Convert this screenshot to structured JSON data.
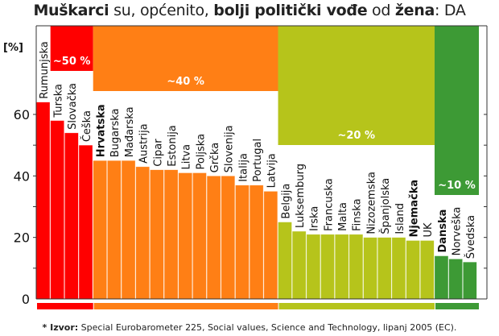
{
  "title_parts": [
    {
      "text": "Muškarci",
      "bold": true
    },
    {
      "text": " su, općenito, ",
      "bold": false
    },
    {
      "text": "bolji politički vođe",
      "bold": true
    },
    {
      "text": " od ",
      "bold": false
    },
    {
      "text": "žena",
      "bold": true
    },
    {
      "text": ": DA",
      "bold": false
    }
  ],
  "footnote": {
    "prefix": "* Izvor:",
    "text": " Special Eurobarometer 225, Social values, Science and Technology, lipanj 2005 (EC)."
  },
  "chart_data": {
    "type": "bar",
    "ylabel": "[%]",
    "ylim": [
      0,
      70
    ],
    "yticks": [
      0,
      20,
      40,
      60
    ],
    "categories": [
      "Rumunjska",
      "Turska",
      "Slovačka",
      "Češka",
      "Hrvatska",
      "Bugarska",
      "Mađarska",
      "Austrija",
      "Cipar",
      "Estonija",
      "Litva",
      "Poljska",
      "Grčka",
      "Slovenija",
      "Italija",
      "Portugal",
      "Latvija",
      "Belgija",
      "Luksemburg",
      "Irska",
      "Francuska",
      "Malta",
      "Finska",
      "Nizozemska",
      "Španjolska",
      "Island",
      "Njemačka",
      "UK",
      "Danska",
      "Norveška",
      "Švedska"
    ],
    "values": [
      64,
      58,
      54,
      50,
      45,
      45,
      45,
      43,
      42,
      42,
      41,
      41,
      40,
      40,
      37,
      37,
      35,
      25,
      22,
      21,
      21,
      21,
      21,
      20,
      20,
      20,
      19,
      19,
      14,
      13,
      12
    ],
    "bold_categories": [
      "Hrvatska",
      "Njemačka",
      "Danska"
    ],
    "groups": [
      {
        "label": "~50 %",
        "from": 0,
        "to": 3,
        "color": "#ff0000"
      },
      {
        "label": "~40 %",
        "from": 4,
        "to": 16,
        "color": "#ff7f15"
      },
      {
        "label": "~20 %",
        "from": 17,
        "to": 27,
        "color": "#b6c41b"
      },
      {
        "label": "~10 %",
        "from": 28,
        "to": 30,
        "color": "#3d9a35"
      }
    ]
  }
}
